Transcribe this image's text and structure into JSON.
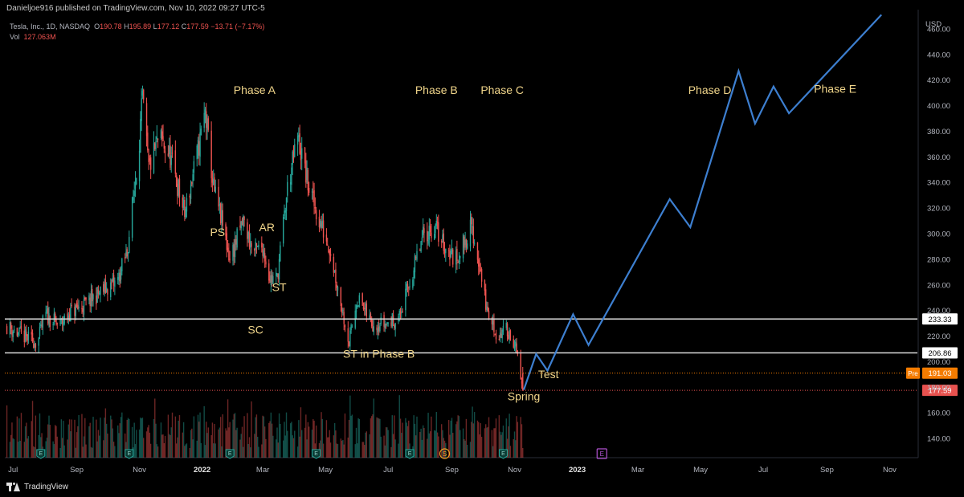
{
  "header": {
    "publisher": "Danieljoe916 published on TradingView.com, Nov 10, 2022 09:27 UTC-5"
  },
  "legend": {
    "symbol": "Tesla, Inc., 1D, NASDAQ",
    "open_label": "O",
    "open": "190.78",
    "high_label": "H",
    "high": "195.89",
    "low_label": "L",
    "low": "177.12",
    "close_label": "C",
    "close": "177.59",
    "change": "−13.71 (−7.17%)",
    "vol_label": "Vol",
    "vol": "127.063M"
  },
  "footer": {
    "brand": "TradingView"
  },
  "chart_data": {
    "type": "line",
    "price_axis": {
      "unit_label": "USD",
      "ylim": [
        125,
        475
      ],
      "ticks": [
        140,
        160,
        180,
        200,
        220,
        240,
        260,
        280,
        300,
        320,
        340,
        360,
        380,
        400,
        420,
        440,
        460
      ]
    },
    "time_axis": {
      "xlim": [
        "2021-06-23",
        "2023-11-28"
      ],
      "ticks": [
        {
          "date": "2021-07-01",
          "label": "Jul",
          "bold": false
        },
        {
          "date": "2021-09-01",
          "label": "Sep",
          "bold": false
        },
        {
          "date": "2021-11-01",
          "label": "Nov",
          "bold": false
        },
        {
          "date": "2022-01-01",
          "label": "2022",
          "bold": true
        },
        {
          "date": "2022-03-01",
          "label": "Mar",
          "bold": false
        },
        {
          "date": "2022-05-01",
          "label": "May",
          "bold": false
        },
        {
          "date": "2022-07-01",
          "label": "Jul",
          "bold": false
        },
        {
          "date": "2022-09-01",
          "label": "Sep",
          "bold": false
        },
        {
          "date": "2022-11-01",
          "label": "Nov",
          "bold": false
        },
        {
          "date": "2023-01-01",
          "label": "2023",
          "bold": true
        },
        {
          "date": "2023-03-01",
          "label": "Mar",
          "bold": false
        },
        {
          "date": "2023-05-01",
          "label": "May",
          "bold": false
        },
        {
          "date": "2023-07-01",
          "label": "Jul",
          "bold": false
        },
        {
          "date": "2023-09-01",
          "label": "Sep",
          "bold": false
        },
        {
          "date": "2023-11-01",
          "label": "Nov",
          "bold": false
        }
      ]
    },
    "price_path": [
      {
        "date": "2021-06-25",
        "price": 228
      },
      {
        "date": "2021-07-10",
        "price": 220
      },
      {
        "date": "2021-07-25",
        "price": 215
      },
      {
        "date": "2021-08-01",
        "price": 237
      },
      {
        "date": "2021-08-15",
        "price": 228
      },
      {
        "date": "2021-08-25",
        "price": 238
      },
      {
        "date": "2021-09-10",
        "price": 245
      },
      {
        "date": "2021-09-25",
        "price": 255
      },
      {
        "date": "2021-10-10",
        "price": 262
      },
      {
        "date": "2021-10-20",
        "price": 285
      },
      {
        "date": "2021-10-27",
        "price": 335
      },
      {
        "date": "2021-11-01",
        "price": 375
      },
      {
        "date": "2021-11-04",
        "price": 405
      },
      {
        "date": "2021-11-10",
        "price": 350
      },
      {
        "date": "2021-11-20",
        "price": 375
      },
      {
        "date": "2021-12-01",
        "price": 360
      },
      {
        "date": "2021-12-15",
        "price": 315
      },
      {
        "date": "2021-12-28",
        "price": 365
      },
      {
        "date": "2022-01-04",
        "price": 395
      },
      {
        "date": "2022-01-12",
        "price": 335
      },
      {
        "date": "2022-01-20",
        "price": 310
      },
      {
        "date": "2022-01-28",
        "price": 280
      },
      {
        "date": "2022-02-10",
        "price": 310
      },
      {
        "date": "2022-02-20",
        "price": 285
      },
      {
        "date": "2022-03-01",
        "price": 290
      },
      {
        "date": "2022-03-08",
        "price": 265
      },
      {
        "date": "2022-03-15",
        "price": 265
      },
      {
        "date": "2022-03-25",
        "price": 335
      },
      {
        "date": "2022-04-04",
        "price": 375
      },
      {
        "date": "2022-04-15",
        "price": 335
      },
      {
        "date": "2022-04-25",
        "price": 310
      },
      {
        "date": "2022-05-05",
        "price": 290
      },
      {
        "date": "2022-05-15",
        "price": 250
      },
      {
        "date": "2022-05-24",
        "price": 215
      },
      {
        "date": "2022-06-01",
        "price": 250
      },
      {
        "date": "2022-06-15",
        "price": 230
      },
      {
        "date": "2022-06-30",
        "price": 230
      },
      {
        "date": "2022-07-12",
        "price": 235
      },
      {
        "date": "2022-07-25",
        "price": 270
      },
      {
        "date": "2022-08-05",
        "price": 300
      },
      {
        "date": "2022-08-16",
        "price": 305
      },
      {
        "date": "2022-08-25",
        "price": 290
      },
      {
        "date": "2022-09-05",
        "price": 280
      },
      {
        "date": "2022-09-20",
        "price": 305
      },
      {
        "date": "2022-09-28",
        "price": 275
      },
      {
        "date": "2022-10-05",
        "price": 240
      },
      {
        "date": "2022-10-15",
        "price": 220
      },
      {
        "date": "2022-10-25",
        "price": 225
      },
      {
        "date": "2022-11-01",
        "price": 215
      },
      {
        "date": "2022-11-09",
        "price": 178
      }
    ],
    "last_close": 177.59,
    "projection": {
      "color": "#3d7fd0",
      "points": [
        {
          "date": "2022-11-10",
          "price": 178
        },
        {
          "date": "2022-11-22",
          "price": 206
        },
        {
          "date": "2022-12-03",
          "price": 193
        },
        {
          "date": "2022-12-28",
          "price": 237
        },
        {
          "date": "2023-01-12",
          "price": 213
        },
        {
          "date": "2023-04-01",
          "price": 327
        },
        {
          "date": "2023-04-21",
          "price": 305
        },
        {
          "date": "2023-06-07",
          "price": 427
        },
        {
          "date": "2023-06-23",
          "price": 386
        },
        {
          "date": "2023-07-11",
          "price": 415
        },
        {
          "date": "2023-07-26",
          "price": 394
        },
        {
          "date": "2023-10-24",
          "price": 471
        }
      ]
    },
    "horizontal_levels": [
      {
        "price": 233.33,
        "label": "233.33"
      },
      {
        "price": 206.86,
        "label": "206.86"
      }
    ],
    "price_markers": [
      {
        "price": 191.03,
        "label": "191.03",
        "tag": "Pre",
        "color": "#f57c00"
      },
      {
        "price": 177.59,
        "label": "177.59",
        "color": "#e8524f"
      }
    ],
    "annotations": [
      {
        "text": "Phase A",
        "date": "2022-02-21",
        "price": 409
      },
      {
        "text": "Phase B",
        "date": "2022-08-17",
        "price": 409
      },
      {
        "text": "Phase C",
        "date": "2022-10-20",
        "price": 409
      },
      {
        "text": "Phase D",
        "date": "2023-05-10",
        "price": 409
      },
      {
        "text": "Phase E",
        "date": "2023-09-09",
        "price": 410
      },
      {
        "text": "PS",
        "date": "2022-01-16",
        "price": 298
      },
      {
        "text": "AR",
        "date": "2022-03-05",
        "price": 302
      },
      {
        "text": "ST",
        "date": "2022-03-17",
        "price": 255
      },
      {
        "text": "SC",
        "date": "2022-02-22",
        "price": 222
      },
      {
        "text": "ST in Phase B",
        "date": "2022-06-22",
        "price": 203
      },
      {
        "text": "Test",
        "date": "2022-12-04",
        "price": 187
      },
      {
        "text": "Spring",
        "date": "2022-11-10",
        "price": 170
      }
    ],
    "event_markers": [
      {
        "date": "2021-07-28",
        "label": "E",
        "kind": "earnings"
      },
      {
        "date": "2021-10-22",
        "label": "E",
        "kind": "earnings"
      },
      {
        "date": "2022-01-28",
        "label": "E",
        "kind": "earnings"
      },
      {
        "date": "2022-04-22",
        "label": "E",
        "kind": "earnings"
      },
      {
        "date": "2022-07-22",
        "label": "E",
        "kind": "earnings"
      },
      {
        "date": "2022-08-25",
        "label": "S",
        "kind": "split"
      },
      {
        "date": "2022-10-21",
        "label": "E",
        "kind": "earnings"
      },
      {
        "date": "2023-01-25",
        "label": "E",
        "kind": "earnings-upcoming"
      }
    ]
  }
}
